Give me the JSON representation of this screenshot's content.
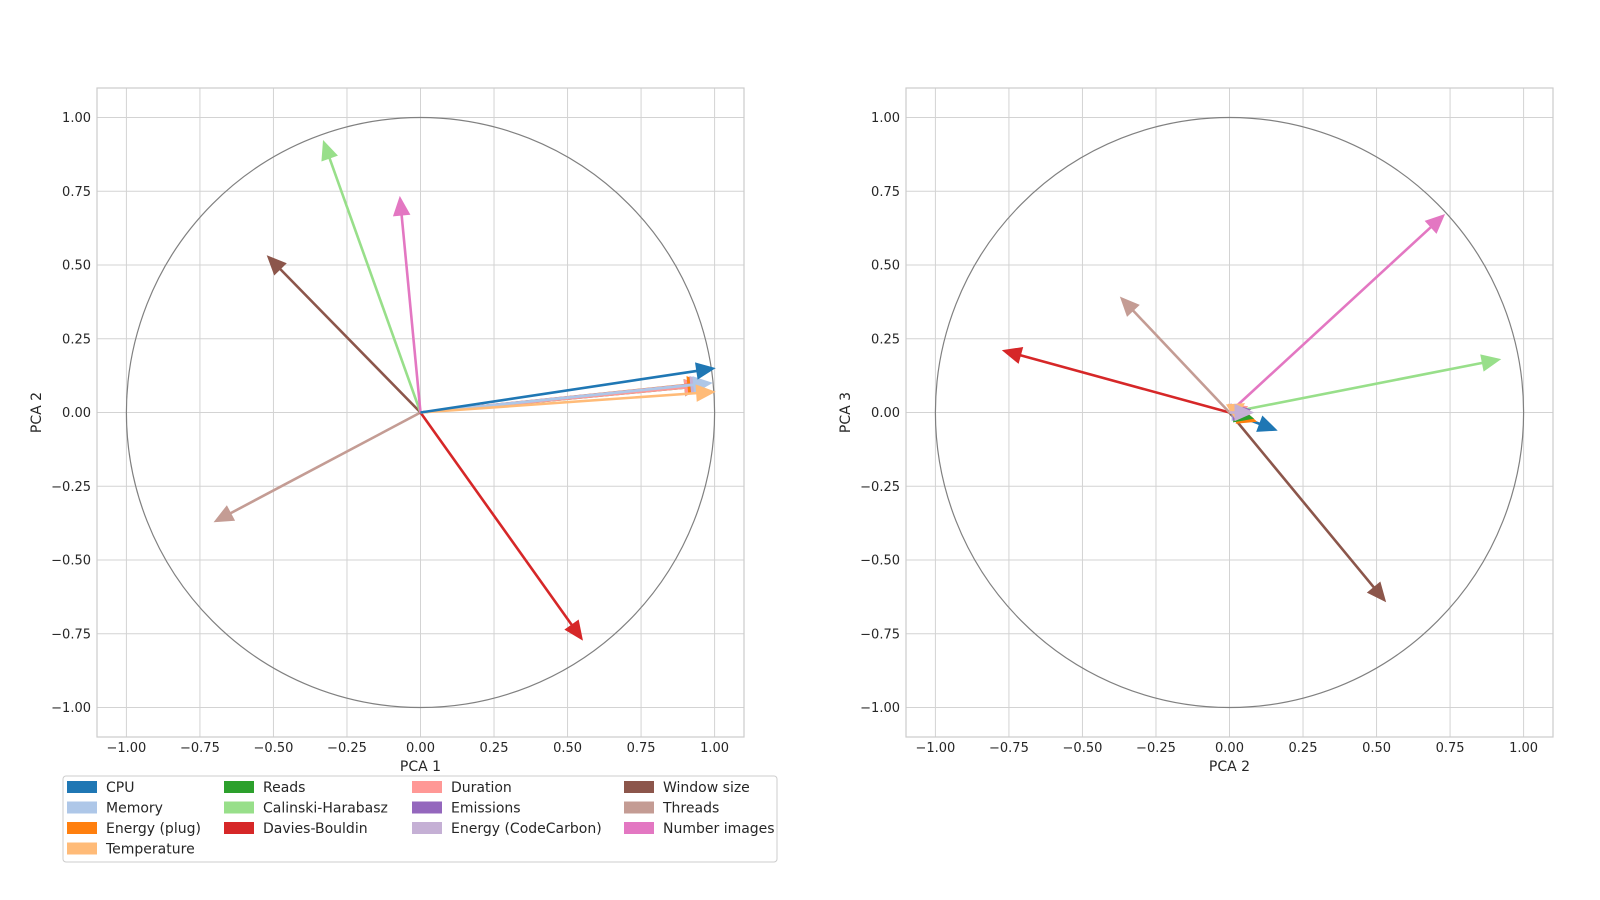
{
  "chart_data": [
    {
      "type": "biplot",
      "xlabel": "PCA 1",
      "ylabel": "PCA 2",
      "xlim": [
        -1.1,
        1.1
      ],
      "ylim": [
        -1.1,
        1.1
      ],
      "xticks": [
        "−1.00",
        "−0.75",
        "−0.50",
        "−0.25",
        "0.00",
        "0.25",
        "0.50",
        "0.75",
        "1.00"
      ],
      "yticks": [
        "−1.00",
        "−0.75",
        "−0.50",
        "−0.25",
        "0.00",
        "0.25",
        "0.50",
        "0.75",
        "1.00"
      ],
      "unit_circle": true,
      "grid": true,
      "arrows": [
        {
          "variable": "Threads",
          "x": -0.7,
          "y": -0.37
        },
        {
          "variable": "Window size",
          "x": -0.52,
          "y": 0.53
        },
        {
          "variable": "Calinski-Harabasz",
          "x": -0.33,
          "y": 0.92
        },
        {
          "variable": "Number images",
          "x": -0.07,
          "y": 0.73
        },
        {
          "variable": "Davies-Bouldin",
          "x": 0.55,
          "y": -0.77
        },
        {
          "variable": "Reads",
          "x": 0.96,
          "y": 0.09
        },
        {
          "variable": "Duration",
          "x": 0.96,
          "y": 0.09
        },
        {
          "variable": "Energy (plug)",
          "x": 0.97,
          "y": 0.1
        },
        {
          "variable": "Emissions",
          "x": 0.98,
          "y": 0.1
        },
        {
          "variable": "Energy (CodeCarbon)",
          "x": 0.98,
          "y": 0.1
        },
        {
          "variable": "Memory",
          "x": 0.99,
          "y": 0.1
        },
        {
          "variable": "Temperature",
          "x": 1.0,
          "y": 0.07
        },
        {
          "variable": "CPU",
          "x": 1.0,
          "y": 0.15
        }
      ]
    },
    {
      "type": "biplot",
      "xlabel": "PCA 2",
      "ylabel": "PCA 3",
      "xlim": [
        -1.1,
        1.1
      ],
      "ylim": [
        -1.1,
        1.1
      ],
      "xticks": [
        "−1.00",
        "−0.75",
        "−0.50",
        "−0.25",
        "0.00",
        "0.25",
        "0.50",
        "0.75",
        "1.00"
      ],
      "yticks": [
        "−1.00",
        "−0.75",
        "−0.50",
        "−0.25",
        "0.00",
        "0.25",
        "0.50",
        "0.75",
        "1.00"
      ],
      "unit_circle": true,
      "grid": true,
      "arrows": [
        {
          "variable": "Davies-Bouldin",
          "x": -0.77,
          "y": 0.21
        },
        {
          "variable": "Threads",
          "x": -0.37,
          "y": 0.39
        },
        {
          "variable": "Number images",
          "x": 0.73,
          "y": 0.67
        },
        {
          "variable": "Calinski-Harabasz",
          "x": 0.92,
          "y": 0.18
        },
        {
          "variable": "Window size",
          "x": 0.53,
          "y": -0.64
        },
        {
          "variable": "CPU",
          "x": 0.16,
          "y": -0.06
        },
        {
          "variable": "Energy (plug)",
          "x": 0.09,
          "y": -0.03
        },
        {
          "variable": "Reads",
          "x": 0.08,
          "y": -0.02
        },
        {
          "variable": "Duration",
          "x": 0.06,
          "y": 0.02
        },
        {
          "variable": "Memory",
          "x": 0.07,
          "y": 0.0
        },
        {
          "variable": "Emissions",
          "x": 0.07,
          "y": 0.01
        },
        {
          "variable": "Temperature",
          "x": 0.05,
          "y": 0.03
        },
        {
          "variable": "Energy (CodeCarbon)",
          "x": 0.08,
          "y": 0.0
        }
      ]
    }
  ],
  "legend": {
    "placement": "below left plot",
    "entries": [
      {
        "label": "CPU",
        "color": "#1f77b4"
      },
      {
        "label": "Memory",
        "color": "#aec7e8"
      },
      {
        "label": "Energy (plug)",
        "color": "#ff7f0e"
      },
      {
        "label": "Temperature",
        "color": "#ffbb78"
      },
      {
        "label": "Reads",
        "color": "#2ca02c"
      },
      {
        "label": "Calinski-Harabasz",
        "color": "#98df8a"
      },
      {
        "label": "Davies-Bouldin",
        "color": "#d62728"
      },
      {
        "label": "Duration",
        "color": "#ff9896"
      },
      {
        "label": "Emissions",
        "color": "#9467bd"
      },
      {
        "label": "Energy (CodeCarbon)",
        "color": "#c5b0d5"
      },
      {
        "label": "Window size",
        "color": "#8c564b"
      },
      {
        "label": "Threads",
        "color": "#c49c94"
      },
      {
        "label": "Number images",
        "color": "#e377c2"
      }
    ]
  },
  "colors": {
    "grid": "#d3d3d3",
    "axes_frame": "#cccccc",
    "circle": "#808080",
    "background": "#ffffff"
  }
}
